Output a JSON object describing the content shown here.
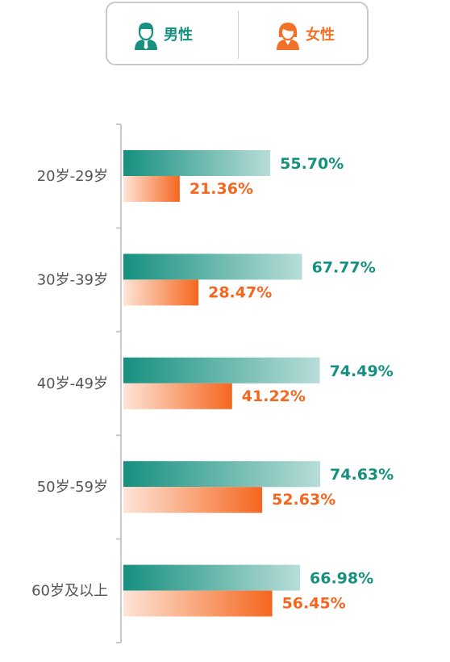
{
  "legend": {
    "male": {
      "label": "男性",
      "icon": "male-user-icon"
    },
    "female": {
      "label": "女性",
      "icon": "female-user-icon"
    }
  },
  "colors": {
    "male": "#16907f",
    "male_light": "#b8ddd8",
    "female": "#f5661e",
    "female_light": "#fde5d8",
    "axis": "#c9c9c9",
    "tick_label": "#555555"
  },
  "chart_data": {
    "type": "bar",
    "orientation": "horizontal",
    "categories": [
      "20岁-29岁",
      "30岁-39岁",
      "40岁-49岁",
      "50岁-59岁",
      "60岁及以上"
    ],
    "series": [
      {
        "name": "男性",
        "values": [
          55.7,
          67.77,
          74.49,
          74.63,
          66.98
        ],
        "labels": [
          "55.70%",
          "67.77%",
          "74.49%",
          "74.63%",
          "66.98%"
        ]
      },
      {
        "name": "女性",
        "values": [
          21.36,
          28.47,
          41.22,
          52.63,
          56.45
        ],
        "labels": [
          "21.36%",
          "28.47%",
          "41.22%",
          "52.63%",
          "56.45%"
        ]
      }
    ],
    "xlim": [
      0,
      100
    ],
    "grid": false,
    "legend_position": "top"
  }
}
